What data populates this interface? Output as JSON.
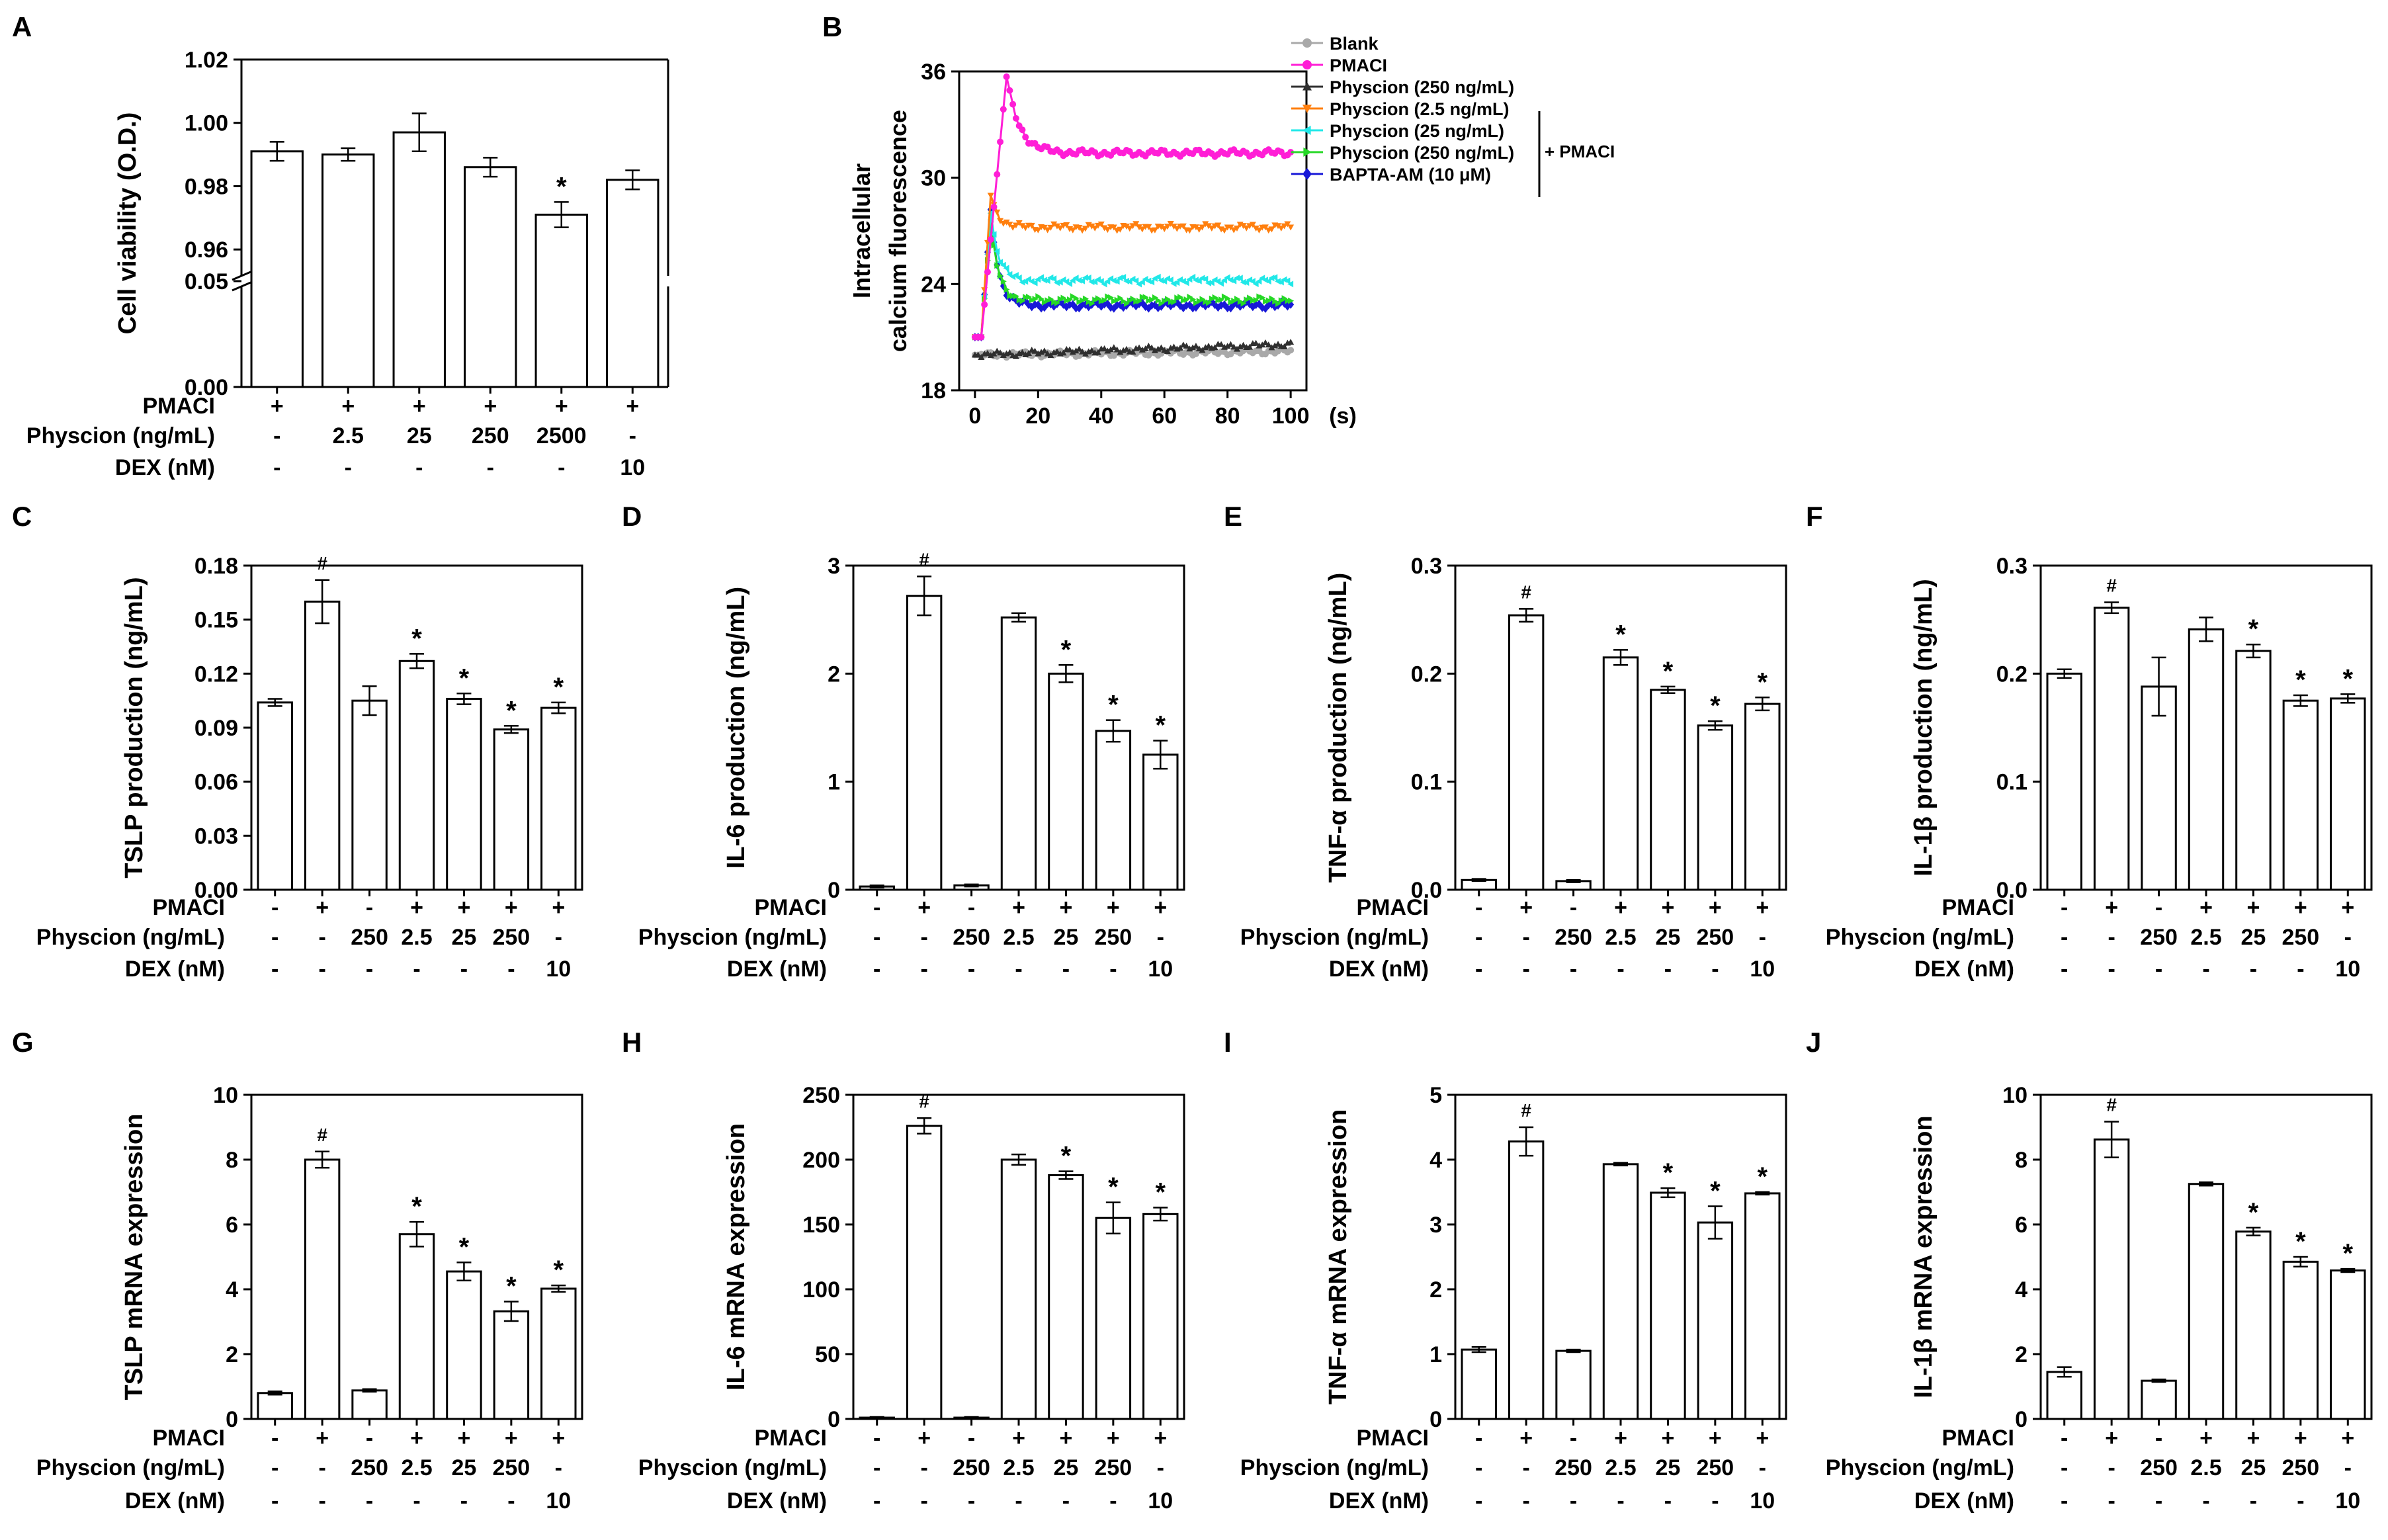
{
  "labels": {
    "pmaci": "PMACI",
    "physcion": "Physcion (ng/mL)",
    "dex": "DEX (nM)"
  },
  "colors": {
    "axis": "#000000",
    "bar_fill": "#ffffff"
  },
  "chart_data": [
    {
      "panel": "A",
      "type": "bar",
      "ylabel": "Cell viability (O.D.)",
      "axis_break": true,
      "categories": [
        "1",
        "2",
        "3",
        "4",
        "5",
        "6"
      ],
      "values": [
        0.991,
        0.99,
        0.997,
        0.986,
        0.971,
        0.982
      ],
      "errors": [
        0.003,
        0.002,
        0.006,
        0.003,
        0.004,
        0.003
      ],
      "sig": [
        "",
        "",
        "",
        "",
        "*",
        ""
      ],
      "ticks": [
        "1.02",
        "1.00",
        "0.98",
        "0.96",
        "0.05",
        "0.00"
      ],
      "rows": [
        [
          "+",
          "+",
          "+",
          "+",
          "+",
          "+"
        ],
        [
          "-",
          "2.5",
          "25",
          "250",
          "2500",
          "-"
        ],
        [
          "-",
          "-",
          "-",
          "-",
          "-",
          "10"
        ]
      ]
    },
    {
      "panel": "B",
      "type": "line",
      "ylabel_lines": [
        "Intracellular",
        "calcium fluorescence"
      ],
      "xlabel": "(s)",
      "ylim": [
        18,
        36
      ],
      "xlim": [
        -5,
        105
      ],
      "xticks": [
        "0",
        "20",
        "40",
        "60",
        "80",
        "100"
      ],
      "yticks": [
        "18",
        "24",
        "30",
        "36"
      ],
      "legend": [
        "Blank",
        "PMACI",
        "Physcion (250 ng/mL)",
        "Physcion (2.5 ng/mL)",
        "Physcion (25 ng/mL)",
        "Physcion (250 ng/mL)",
        "BAPTA-AM (10 μM)"
      ],
      "bracket_label": "+ PMACI",
      "series": [
        {
          "name": "Blank",
          "color": "#a9a9a9",
          "marker": "circle",
          "baseline": 20.0,
          "peak": 20.0,
          "plateau": 20.2
        },
        {
          "name": "PMACI",
          "color": "#ff1ed6",
          "marker": "circle",
          "baseline": 21.0,
          "peak": 35.7,
          "plateau": 31.4
        },
        {
          "name": "Physcion (250 ng/mL)",
          "color": "#2f2f2f",
          "marker": "triangle",
          "baseline": 20.0,
          "peak": 20.0,
          "plateau": 20.6
        },
        {
          "name": "Physcion (2.5 ng/mL)",
          "color": "#ff7f0e",
          "marker": "tri-down",
          "baseline": 21.0,
          "peak": 29.0,
          "plateau": 27.2
        },
        {
          "name": "Physcion (25 ng/mL)",
          "color": "#21e8e8",
          "marker": "tri-left",
          "baseline": 21.0,
          "peak": 28.0,
          "plateau": 24.2
        },
        {
          "name": "Physcion (250 ng/mL)",
          "color": "#26d826",
          "marker": "tri-right",
          "baseline": 21.0,
          "peak": 27.5,
          "plateau": 23.1
        },
        {
          "name": "BAPTA-AM (10 μM)",
          "color": "#1818d8",
          "marker": "diamond",
          "baseline": 21.0,
          "peak": 28.2,
          "plateau": 22.8
        }
      ]
    },
    {
      "panel": "C",
      "type": "bar",
      "ylabel": "TSLP production (ng/mL)",
      "ylim": [
        0,
        0.18
      ],
      "ticks": [
        "0.00",
        "0.03",
        "0.06",
        "0.09",
        "0.12",
        "0.15",
        "0.18"
      ],
      "categories": [
        "1",
        "2",
        "3",
        "4",
        "5",
        "6",
        "7"
      ],
      "values": [
        0.104,
        0.16,
        0.105,
        0.127,
        0.106,
        0.089,
        0.101
      ],
      "errors": [
        0.002,
        0.012,
        0.008,
        0.004,
        0.003,
        0.002,
        0.003
      ],
      "sig": [
        "",
        "#",
        "",
        "*",
        "*",
        "*",
        "*"
      ],
      "rows": [
        [
          "-",
          "+",
          "-",
          "+",
          "+",
          "+",
          "+"
        ],
        [
          "-",
          "-",
          "250",
          "2.5",
          "25",
          "250",
          "-"
        ],
        [
          "-",
          "-",
          "-",
          "-",
          "-",
          "-",
          "10"
        ]
      ]
    },
    {
      "panel": "D",
      "type": "bar",
      "ylabel": "IL-6 production (ng/mL)",
      "ylim": [
        0,
        3
      ],
      "ticks": [
        "0",
        "1",
        "2",
        "3"
      ],
      "categories": [
        "1",
        "2",
        "3",
        "4",
        "5",
        "6",
        "7"
      ],
      "values": [
        0.03,
        2.72,
        0.04,
        2.52,
        2.0,
        1.47,
        1.25
      ],
      "errors": [
        0.01,
        0.18,
        0.01,
        0.04,
        0.08,
        0.1,
        0.13
      ],
      "sig": [
        "",
        "#",
        "",
        "",
        "*",
        "*",
        "*"
      ],
      "rows": [
        [
          "-",
          "+",
          "-",
          "+",
          "+",
          "+",
          "+"
        ],
        [
          "-",
          "-",
          "250",
          "2.5",
          "25",
          "250",
          "-"
        ],
        [
          "-",
          "-",
          "-",
          "-",
          "-",
          "-",
          "10"
        ]
      ]
    },
    {
      "panel": "E",
      "type": "bar",
      "ylabel": "TNF-α production (ng/mL)",
      "ylim": [
        0,
        0.3
      ],
      "ticks": [
        "0.0",
        "0.1",
        "0.2",
        "0.3"
      ],
      "categories": [
        "1",
        "2",
        "3",
        "4",
        "5",
        "6",
        "7"
      ],
      "values": [
        0.009,
        0.254,
        0.008,
        0.215,
        0.185,
        0.152,
        0.172
      ],
      "errors": [
        0.001,
        0.006,
        0.001,
        0.007,
        0.003,
        0.004,
        0.006
      ],
      "sig": [
        "",
        "#",
        "",
        "*",
        "*",
        "*",
        "*"
      ],
      "rows": [
        [
          "-",
          "+",
          "-",
          "+",
          "+",
          "+",
          "+"
        ],
        [
          "-",
          "-",
          "250",
          "2.5",
          "25",
          "250",
          "-"
        ],
        [
          "-",
          "-",
          "-",
          "-",
          "-",
          "-",
          "10"
        ]
      ]
    },
    {
      "panel": "F",
      "type": "bar",
      "ylabel": "IL-1β production (ng/mL)",
      "ylim": [
        0,
        0.3
      ],
      "ticks": [
        "0.0",
        "0.1",
        "0.2",
        "0.3"
      ],
      "categories": [
        "1",
        "2",
        "3",
        "4",
        "5",
        "6",
        "7"
      ],
      "values": [
        0.2,
        0.261,
        0.188,
        0.241,
        0.221,
        0.175,
        0.177
      ],
      "errors": [
        0.004,
        0.005,
        0.027,
        0.011,
        0.006,
        0.005,
        0.004
      ],
      "sig": [
        "",
        "#",
        "",
        "",
        "*",
        "*",
        "*"
      ],
      "rows": [
        [
          "-",
          "+",
          "-",
          "+",
          "+",
          "+",
          "+"
        ],
        [
          "-",
          "-",
          "250",
          "2.5",
          "25",
          "250",
          "-"
        ],
        [
          "-",
          "-",
          "-",
          "-",
          "-",
          "-",
          "10"
        ]
      ]
    },
    {
      "panel": "G",
      "type": "bar",
      "ylabel": "TSLP mRNA expression",
      "ylim": [
        0,
        10
      ],
      "ticks": [
        "0",
        "2",
        "4",
        "6",
        "8",
        "10"
      ],
      "categories": [
        "1",
        "2",
        "3",
        "4",
        "5",
        "6",
        "7"
      ],
      "values": [
        0.8,
        8.0,
        0.88,
        5.7,
        4.55,
        3.32,
        4.02
      ],
      "errors": [
        0.05,
        0.25,
        0.04,
        0.38,
        0.28,
        0.3,
        0.1
      ],
      "sig": [
        "",
        "#",
        "",
        "*",
        "*",
        "*",
        "*"
      ],
      "rows": [
        [
          "-",
          "+",
          "-",
          "+",
          "+",
          "+",
          "+"
        ],
        [
          "-",
          "-",
          "250",
          "2.5",
          "25",
          "250",
          "-"
        ],
        [
          "-",
          "-",
          "-",
          "-",
          "-",
          "-",
          "10"
        ]
      ]
    },
    {
      "panel": "H",
      "type": "bar",
      "ylabel": "IL-6 mRNA expression",
      "ylim": [
        0,
        250
      ],
      "ticks": [
        "0",
        "50",
        "100",
        "150",
        "200",
        "250"
      ],
      "categories": [
        "1",
        "2",
        "3",
        "4",
        "5",
        "6",
        "7"
      ],
      "values": [
        1.0,
        226,
        1.0,
        200,
        188,
        155,
        158
      ],
      "errors": [
        0.5,
        6,
        0.5,
        4,
        3,
        12,
        5
      ],
      "sig": [
        "",
        "#",
        "",
        "",
        "*",
        "*",
        "*"
      ],
      "rows": [
        [
          "-",
          "+",
          "-",
          "+",
          "+",
          "+",
          "+"
        ],
        [
          "-",
          "-",
          "250",
          "2.5",
          "25",
          "250",
          "-"
        ],
        [
          "-",
          "-",
          "-",
          "-",
          "-",
          "-",
          "10"
        ]
      ]
    },
    {
      "panel": "I",
      "type": "bar",
      "ylabel": "TNF-α mRNA expression",
      "ylim": [
        0,
        5
      ],
      "ticks": [
        "0",
        "1",
        "2",
        "3",
        "4",
        "5"
      ],
      "categories": [
        "1",
        "2",
        "3",
        "4",
        "5",
        "6",
        "7"
      ],
      "values": [
        1.07,
        4.28,
        1.05,
        3.93,
        3.49,
        3.03,
        3.48
      ],
      "errors": [
        0.04,
        0.22,
        0.02,
        0.02,
        0.07,
        0.25,
        0.02
      ],
      "sig": [
        "",
        "#",
        "",
        "",
        "*",
        "*",
        "*"
      ],
      "rows": [
        [
          "-",
          "+",
          "-",
          "+",
          "+",
          "+",
          "+"
        ],
        [
          "-",
          "-",
          "250",
          "2.5",
          "25",
          "250",
          "-"
        ],
        [
          "-",
          "-",
          "-",
          "-",
          "-",
          "-",
          "10"
        ]
      ]
    },
    {
      "panel": "J",
      "type": "bar",
      "ylabel": "IL-1β mRNA expression",
      "ylim": [
        0,
        10
      ],
      "ticks": [
        "0",
        "2",
        "4",
        "6",
        "8",
        "10"
      ],
      "categories": [
        "1",
        "2",
        "3",
        "4",
        "5",
        "6",
        "7"
      ],
      "values": [
        1.45,
        8.62,
        1.18,
        7.25,
        5.78,
        4.85,
        4.58
      ],
      "errors": [
        0.15,
        0.55,
        0.04,
        0.05,
        0.12,
        0.15,
        0.05
      ],
      "sig": [
        "",
        "#",
        "",
        "",
        "*",
        "*",
        "*"
      ],
      "rows": [
        [
          "-",
          "+",
          "-",
          "+",
          "+",
          "+",
          "+"
        ],
        [
          "-",
          "-",
          "250",
          "2.5",
          "25",
          "250",
          "-"
        ],
        [
          "-",
          "-",
          "-",
          "-",
          "-",
          "-",
          "10"
        ]
      ]
    }
  ]
}
